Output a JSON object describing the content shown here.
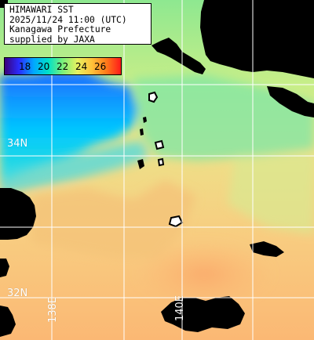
{
  "info": {
    "lines": [
      "HIMAWARI SST",
      "2025/11/24 11:00 (UTC)",
      "Kanagawa Prefecture",
      "supplied by JAXA"
    ]
  },
  "colorbar": {
    "ticks": [
      "18",
      "20",
      "22",
      "24",
      "26"
    ],
    "colors": [
      "#3b007a",
      "#2a2cff",
      "#00a8ff",
      "#00e0c8",
      "#7cf07a",
      "#e6f060",
      "#ffc23a",
      "#ff7a1a",
      "#ff1a1a"
    ]
  },
  "grid_labels": {
    "lat_34": "34N",
    "lat_32": "32N",
    "lon_138": "138E",
    "lon_140": "140E"
  },
  "map": {
    "land_color": "#000000",
    "grid_color": "#ffffff",
    "ocean_colors": {
      "cold": "#1f6bff",
      "cool": "#00c8ff",
      "mild": "#6ee89a",
      "warm": "#d8ee84",
      "warmer": "#f6d07e",
      "hot": "#fbb874"
    }
  }
}
